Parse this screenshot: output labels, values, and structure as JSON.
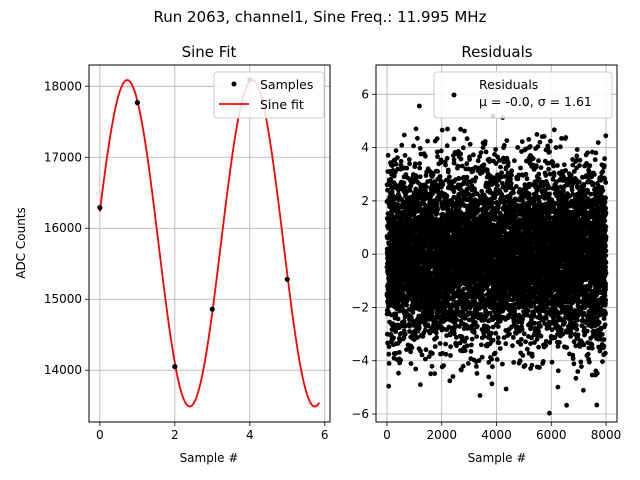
{
  "figure": {
    "suptitle": "Run 2063, channel1, Sine Freq.: 11.995 MHz"
  },
  "chart_data": [
    {
      "type": "line",
      "title": "Sine Fit",
      "xlabel": "Sample #",
      "ylabel": "ADC Counts",
      "xlim": [
        -0.29,
        6.14
      ],
      "ylim": [
        13270,
        18300
      ],
      "xticks": [
        0,
        2,
        4,
        6
      ],
      "yticks": [
        14000,
        15000,
        16000,
        17000,
        18000
      ],
      "grid": true,
      "legend": "top-right",
      "series": [
        {
          "name": "Samples",
          "kind": "scatter",
          "color": "#000000",
          "x": [
            0,
            1,
            2,
            3,
            4,
            5
          ],
          "y": [
            16290,
            17770,
            14050,
            14860,
            18090,
            15280
          ]
        },
        {
          "name": "Sine fit",
          "kind": "line",
          "color": "#ff0000",
          "fit": {
            "offset": 15788,
            "amplitude": 2300,
            "period_samples": 3.335,
            "peak_at": 0.73
          },
          "x_range": [
            0,
            5.85
          ]
        }
      ]
    },
    {
      "type": "scatter",
      "title": "Residuals",
      "xlabel": "Sample #",
      "ylabel": "",
      "xlim": [
        -400,
        8400
      ],
      "ylim": [
        -6.3,
        7.1
      ],
      "xticks": [
        0,
        2000,
        4000,
        6000,
        8000
      ],
      "yticks": [
        -6,
        -4,
        -2,
        0,
        2,
        4,
        6
      ],
      "grid": true,
      "legend": "top-right",
      "series": [
        {
          "name": "Residuals",
          "color": "#000000",
          "count": 8000,
          "mean": -0.0,
          "sigma": 1.61
        }
      ],
      "legend_label_line1": "Residuals",
      "legend_label_line2": "μ = -0.0, σ = 1.61"
    }
  ]
}
